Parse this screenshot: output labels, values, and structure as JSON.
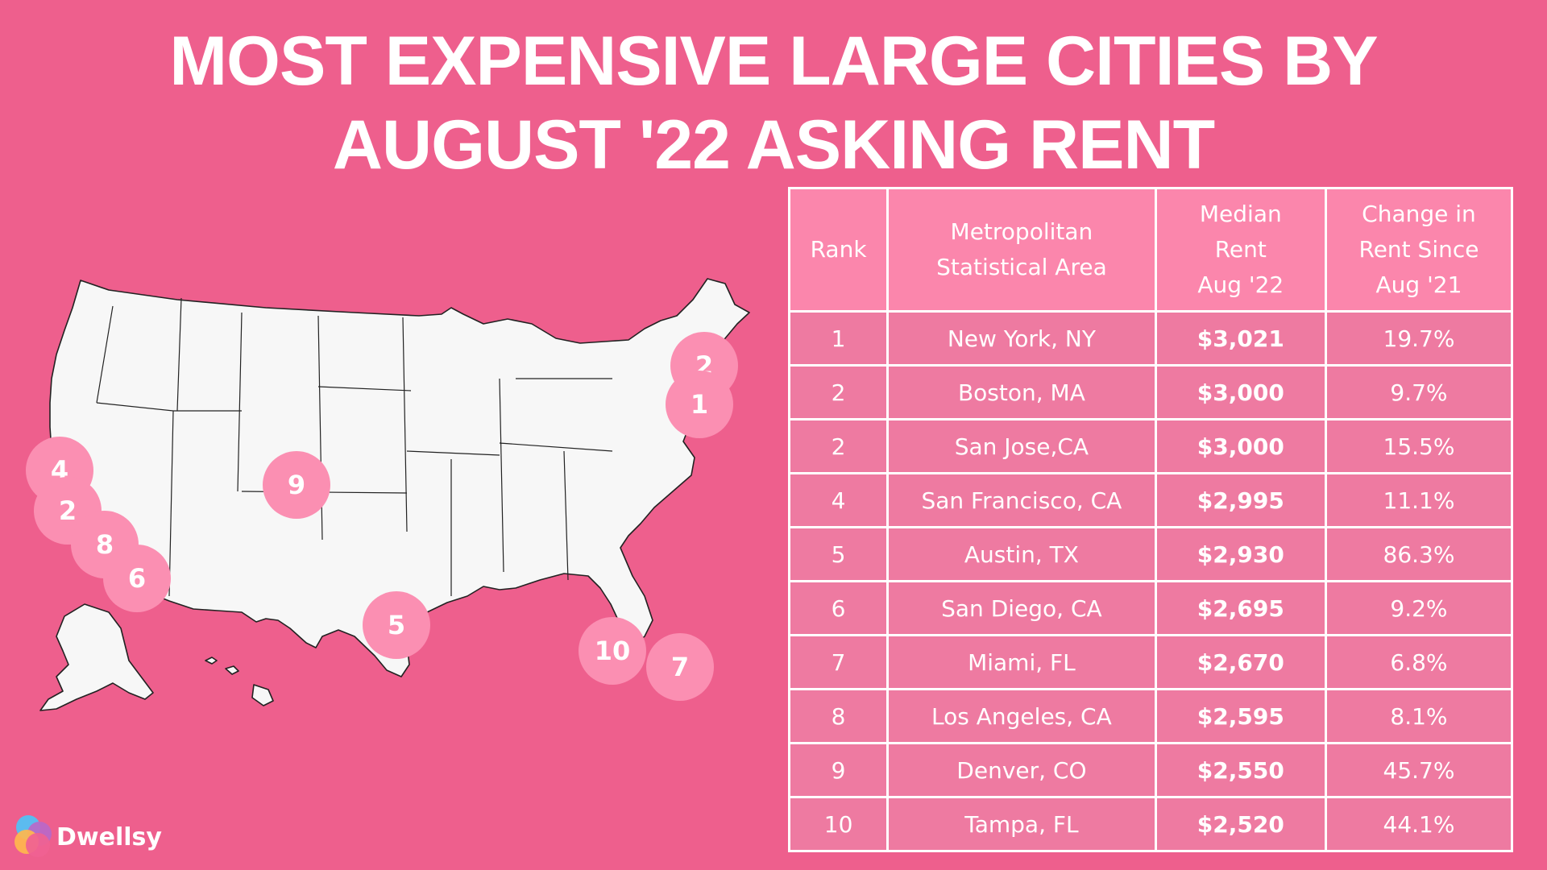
{
  "title": {
    "line1": "MOST EXPENSIVE LARGE CITIES BY",
    "line2": "AUGUST '22 ASKING RENT"
  },
  "table": {
    "headers": {
      "rank": "Rank",
      "area_l1": "Metropolitan",
      "area_l2": "Statistical Area",
      "rent_l1": "Median",
      "rent_l2": "Rent",
      "rent_l3": "Aug '22",
      "change_l1": "Change in",
      "change_l2": "Rent Since",
      "change_l3": "Aug '21"
    },
    "rows": [
      {
        "rank": "1",
        "area": "New York, NY",
        "rent": "$3,021",
        "change": "19.7%"
      },
      {
        "rank": "2",
        "area": "Boston, MA",
        "rent": "$3,000",
        "change": "9.7%"
      },
      {
        "rank": "2",
        "area": "San Jose,CA",
        "rent": "$3,000",
        "change": "15.5%"
      },
      {
        "rank": "4",
        "area": "San Francisco, CA",
        "rent": "$2,995",
        "change": "11.1%"
      },
      {
        "rank": "5",
        "area": "Austin, TX",
        "rent": "$2,930",
        "change": "86.3%"
      },
      {
        "rank": "6",
        "area": "San Diego, CA",
        "rent": "$2,695",
        "change": "9.2%"
      },
      {
        "rank": "7",
        "area": "Miami, FL",
        "rent": "$2,670",
        "change": "6.8%"
      },
      {
        "rank": "8",
        "area": "Los Angeles, CA",
        "rent": "$2,595",
        "change": "8.1%"
      },
      {
        "rank": "9",
        "area": "Denver, CO",
        "rent": "$2,550",
        "change": "45.7%"
      },
      {
        "rank": "10",
        "area": "Tampa, FL",
        "rent": "$2,520",
        "change": "44.1%"
      }
    ]
  },
  "map": {
    "markers": {
      "new_york": "1",
      "boston": "2",
      "san_francisco": "4",
      "san_jose": "2",
      "los_angeles": "8",
      "san_diego": "6",
      "denver": "9",
      "austin": "5",
      "tampa": "10",
      "miami": "7"
    }
  },
  "logo": {
    "text": "Dwellsy",
    "colors": [
      "#4fc3f7",
      "#ba68c8",
      "#ffb74d",
      "#f06292"
    ]
  },
  "colors": {
    "background": "#ee5f8d",
    "header_cell": "#fb86ac",
    "body_cell": "#ee7aa1",
    "marker": "#fb8fb2",
    "state_fill": "#f7f7f7"
  }
}
